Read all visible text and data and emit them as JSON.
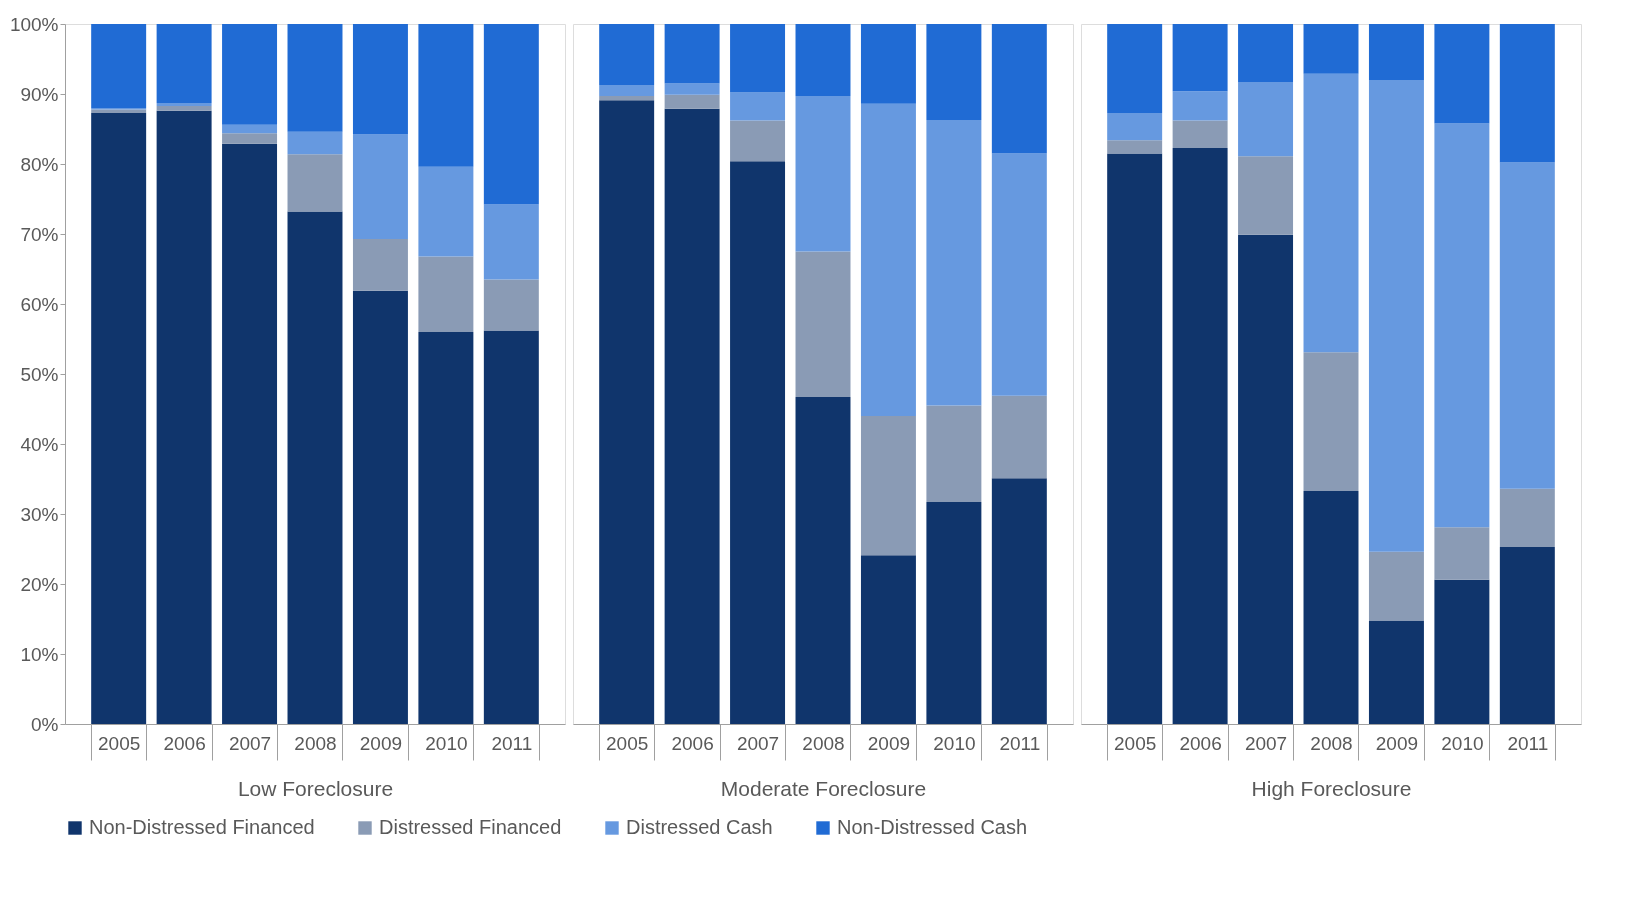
{
  "chart_data": [
    {
      "type": "bar",
      "stacked": true,
      "xlabel": "Low Foreclosure",
      "categories": [
        "2005",
        "2006",
        "2007",
        "2008",
        "2009",
        "2010",
        "2011"
      ],
      "ylim": [
        0,
        100
      ],
      "yticks": [
        {
          "value": 0,
          "label": "0%"
        },
        {
          "value": 10,
          "label": "10%"
        },
        {
          "value": 20,
          "label": "20%"
        },
        {
          "value": 30,
          "label": "30%"
        },
        {
          "value": 40,
          "label": "40%"
        },
        {
          "value": 50,
          "label": "50%"
        },
        {
          "value": 60,
          "label": "60%"
        },
        {
          "value": 70,
          "label": "70%"
        },
        {
          "value": 80,
          "label": "80%"
        },
        {
          "value": 90,
          "label": "90%"
        },
        {
          "value": 100,
          "label": "100%"
        }
      ],
      "grid": false,
      "legend": "bottom",
      "series": [
        {
          "name": "Non-Distressed Financed",
          "color": "#10356c",
          "values": [
            87.3,
            87.6,
            82.9,
            73.2,
            61.9,
            56.0,
            56.2
          ]
        },
        {
          "name": "Distressed Financed",
          "color": "#8a9bb5",
          "values": [
            0.5,
            0.7,
            1.5,
            8.2,
            7.4,
            10.8,
            7.3
          ]
        },
        {
          "name": "Distressed Cash",
          "color": "#6699e0",
          "values": [
            0.2,
            0.4,
            1.2,
            3.2,
            14.9,
            12.8,
            10.7
          ]
        },
        {
          "name": "Non-Distressed Cash",
          "color": "#206bd4",
          "values": [
            12.0,
            11.3,
            14.4,
            15.4,
            15.8,
            20.4,
            25.8
          ]
        }
      ]
    },
    {
      "type": "bar",
      "stacked": true,
      "xlabel": "Moderate Foreclosure",
      "categories": [
        "2005",
        "2006",
        "2007",
        "2008",
        "2009",
        "2010",
        "2011"
      ],
      "ylim": [
        0,
        100
      ],
      "tick_labels": "x",
      "grid": false,
      "legend": "bottom",
      "series": [
        {
          "name": "Non-Distressed Financed",
          "color": "#10356c",
          "values": [
            89.1,
            87.9,
            80.4,
            46.7,
            24.1,
            31.7,
            35.1
          ]
        },
        {
          "name": "Distressed Financed",
          "color": "#8a9bb5",
          "values": [
            0.6,
            2.0,
            5.8,
            20.8,
            19.9,
            13.8,
            11.8
          ]
        },
        {
          "name": "Distressed Cash",
          "color": "#6699e0",
          "values": [
            1.6,
            1.6,
            4.0,
            22.2,
            44.6,
            40.8,
            34.6
          ]
        },
        {
          "name": "Non-Distressed Cash",
          "color": "#206bd4",
          "values": [
            8.7,
            8.5,
            9.8,
            10.3,
            11.4,
            13.7,
            18.5
          ]
        }
      ]
    },
    {
      "type": "bar",
      "stacked": true,
      "xlabel": "High Foreclosure",
      "categories": [
        "2005",
        "2006",
        "2007",
        "2008",
        "2009",
        "2010",
        "2011"
      ],
      "ylim": [
        0,
        100
      ],
      "tick_labels": "x",
      "grid": false,
      "legend": "bottom",
      "series": [
        {
          "name": "Non-Distressed Financed",
          "color": "#10356c",
          "values": [
            81.5,
            82.3,
            69.9,
            33.3,
            14.8,
            20.6,
            25.3
          ]
        },
        {
          "name": "Distressed Financed",
          "color": "#8a9bb5",
          "values": [
            1.9,
            3.9,
            11.2,
            19.8,
            9.8,
            7.5,
            8.3
          ]
        },
        {
          "name": "Distressed Cash",
          "color": "#6699e0",
          "values": [
            3.9,
            4.2,
            10.6,
            39.8,
            67.4,
            57.7,
            46.6
          ]
        },
        {
          "name": "Non-Distressed Cash",
          "color": "#206bd4",
          "values": [
            12.7,
            9.6,
            8.3,
            7.1,
            8.0,
            14.2,
            19.8
          ]
        }
      ]
    }
  ]
}
